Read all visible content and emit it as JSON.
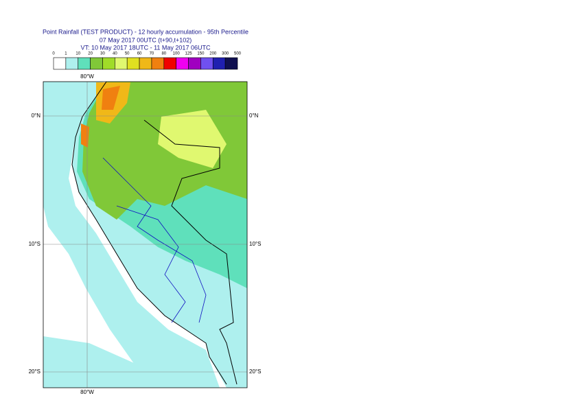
{
  "title": [
    "Point Rainfall (TEST PRODUCT) - 12 hourly accumulation - 95th Percentile",
    "07 May 2017 00UTC (t+90,t+102)",
    "VT: 10 May 2017 18UTC - 11 May 2017 06UTC"
  ],
  "legend": {
    "labels": [
      0,
      1,
      10,
      20,
      30,
      40,
      50,
      60,
      70,
      80,
      100,
      125,
      150,
      200,
      300,
      500
    ],
    "colors": [
      "#ffffff",
      "#aef0ee",
      "#5fe0bb",
      "#80c838",
      "#a0dc28",
      "#e0f870",
      "#e0e020",
      "#f0b818",
      "#f08010",
      "#f00000",
      "#f000f0",
      "#a000c0",
      "#7050f0",
      "#2020b0",
      "#101050"
    ]
  },
  "map": {
    "lon_label_top": "80°W",
    "lon_label_bottom": "80°W",
    "lat_labels": [
      "0°N",
      "10°S",
      "20°S"
    ]
  }
}
